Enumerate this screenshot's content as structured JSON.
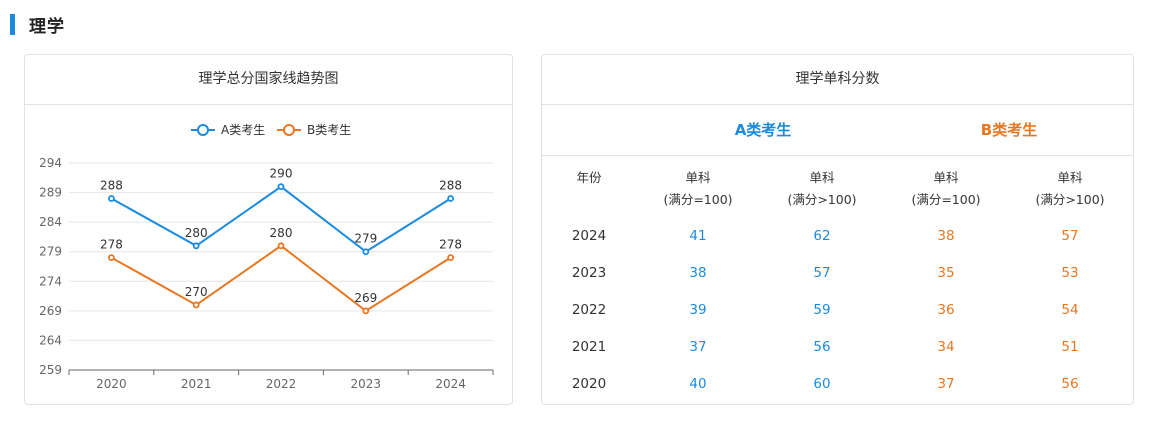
{
  "section": {
    "title": "理学"
  },
  "left_card": {
    "title": "理学总分国家线趋势图"
  },
  "chart_data": {
    "type": "line",
    "title": "理学总分国家线趋势图",
    "categories": [
      "2020",
      "2021",
      "2022",
      "2023",
      "2024"
    ],
    "series": [
      {
        "name": "A类考生",
        "color": "#1a8be0",
        "values": [
          288,
          280,
          290,
          279,
          288
        ]
      },
      {
        "name": "B类考生",
        "color": "#e87722",
        "values": [
          278,
          270,
          280,
          269,
          278
        ]
      }
    ],
    "yticks": [
      294,
      289,
      284,
      279,
      274,
      269,
      264,
      259
    ],
    "ylim": [
      259,
      294
    ],
    "grid": true,
    "legend": "top-center",
    "xlabel": "",
    "ylabel": ""
  },
  "right_card": {
    "title": "理学单科分数",
    "group_a": "A类考生",
    "group_b": "B类考生",
    "col_year": "年份",
    "col_a1_line1": "单科",
    "col_a1_line2": "(满分=100)",
    "col_a2_line1": "单科",
    "col_a2_line2": "(满分>100)",
    "col_b1_line1": "单科",
    "col_b1_line2": "(满分=100)",
    "col_b2_line1": "单科",
    "col_b2_line2": "(满分>100)",
    "rows": [
      {
        "year": "2024",
        "a1": "41",
        "a2": "62",
        "b1": "38",
        "b2": "57"
      },
      {
        "year": "2023",
        "a1": "38",
        "a2": "57",
        "b1": "35",
        "b2": "53"
      },
      {
        "year": "2022",
        "a1": "39",
        "a2": "59",
        "b1": "36",
        "b2": "54"
      },
      {
        "year": "2021",
        "a1": "37",
        "a2": "56",
        "b1": "34",
        "b2": "51"
      },
      {
        "year": "2020",
        "a1": "40",
        "a2": "60",
        "b1": "37",
        "b2": "56"
      }
    ]
  }
}
